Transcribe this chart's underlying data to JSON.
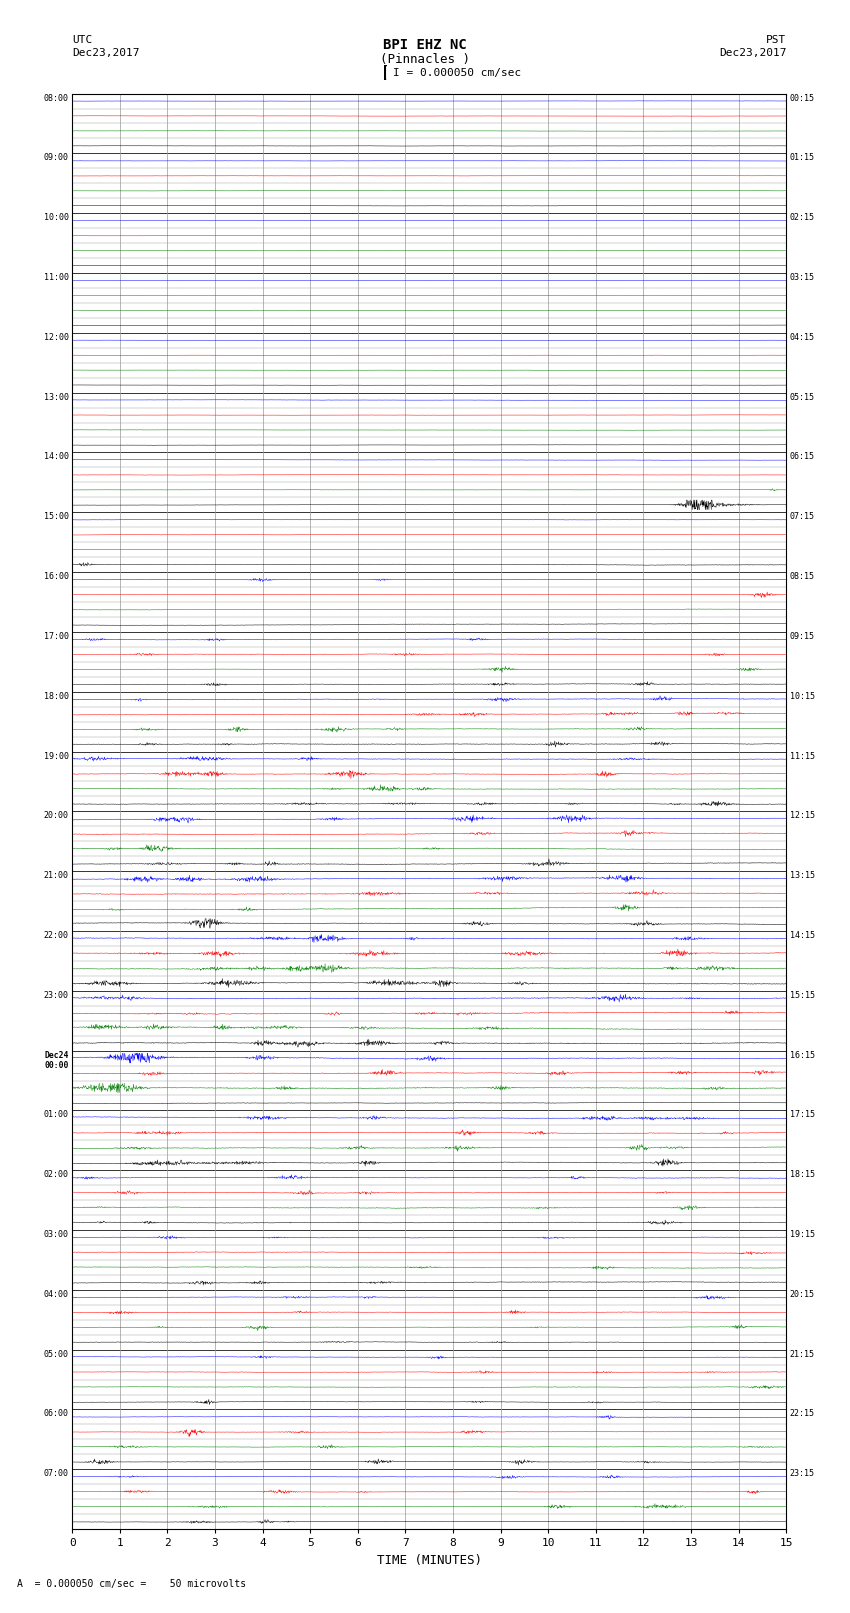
{
  "title_line1": "BPI EHZ NC",
  "title_line2": "(Pinnacles )",
  "scale_label": "I = 0.000050 cm/sec",
  "left_header": "UTC",
  "left_date": "Dec23,2017",
  "right_header": "PST",
  "right_date": "Dec23,2017",
  "bottom_label": "TIME (MINUTES)",
  "footnote": "= 0.000050 cm/sec =    50 microvolts",
  "utc_times": [
    "08:00",
    "09:00",
    "10:00",
    "11:00",
    "12:00",
    "13:00",
    "14:00",
    "15:00",
    "16:00",
    "17:00",
    "18:00",
    "19:00",
    "20:00",
    "21:00",
    "22:00",
    "23:00",
    "Dec24\n00:00",
    "01:00",
    "02:00",
    "03:00",
    "04:00",
    "05:00",
    "06:00",
    "07:00"
  ],
  "pst_times": [
    "00:15",
    "01:15",
    "02:15",
    "03:15",
    "04:15",
    "05:15",
    "06:15",
    "07:15",
    "08:15",
    "09:15",
    "10:15",
    "11:15",
    "12:15",
    "13:15",
    "14:15",
    "15:15",
    "16:15",
    "17:15",
    "18:15",
    "19:15",
    "20:15",
    "21:15",
    "22:15",
    "23:15"
  ],
  "n_hours": 24,
  "subrows_per_hour": 4,
  "n_minutes": 15,
  "bg_color": "#ffffff",
  "line_color_cycle": [
    "blue",
    "red",
    "blue",
    "green",
    "black"
  ],
  "grid_color": "#999999",
  "major_grid_color": "#333333",
  "row_amplitude_scale": 0.38,
  "noise_base": 0.008,
  "samples_per_row": 1800
}
